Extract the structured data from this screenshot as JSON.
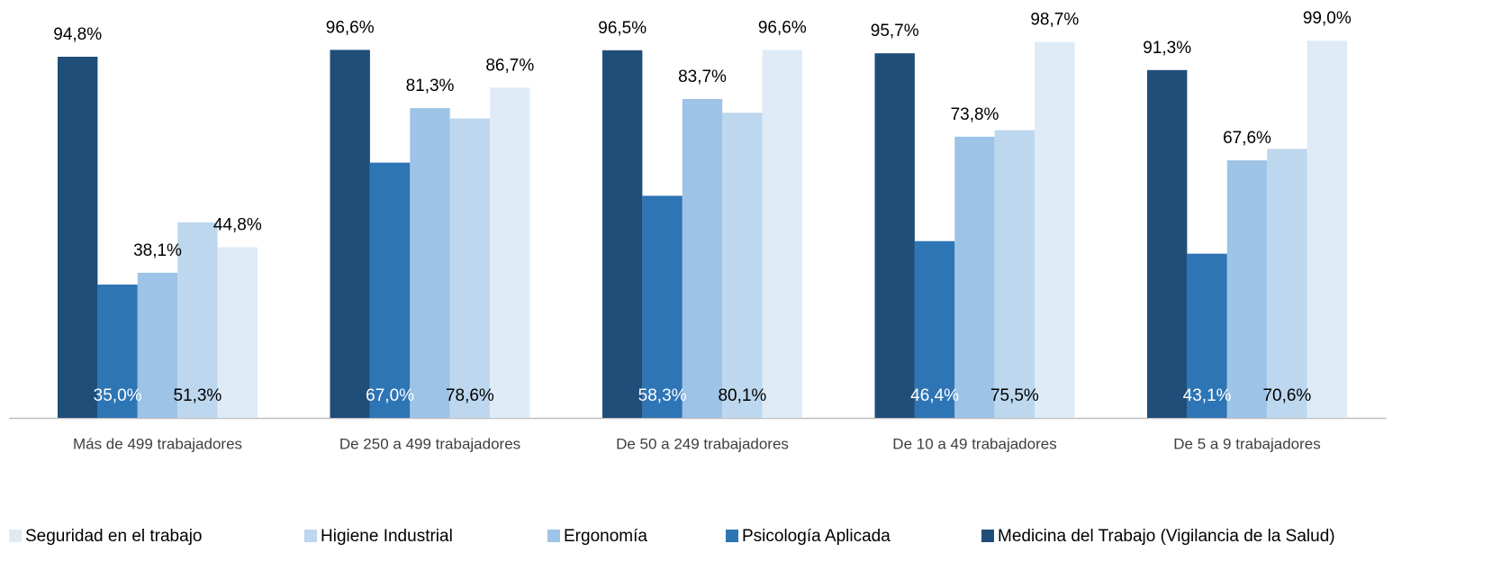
{
  "chart_data": {
    "type": "bar",
    "categories": [
      "Más de 499 trabajadores",
      "De 250 a 499 trabajadores",
      "De 50 a 249 trabajadores",
      "De 10 a 49 trabajadores",
      "De 5 a 9 trabajadores"
    ],
    "series": [
      {
        "name": "Medicina del Trabajo (Vigilancia de la Salud)",
        "color": "#1f4e79",
        "values": [
          94.8,
          96.6,
          96.5,
          95.7,
          91.3
        ],
        "value_labels": [
          "94,8%",
          "96,6%",
          "96,5%",
          "95,7%",
          "91,3%"
        ]
      },
      {
        "name": "Psicología Aplicada",
        "color": "#2e75b6",
        "values": [
          35.0,
          67.0,
          58.3,
          46.4,
          43.1
        ],
        "value_labels": [
          "35,0%",
          "67,0%",
          "58,3%",
          "46,4%",
          "43,1%"
        ]
      },
      {
        "name": "Ergonomía",
        "color": "#9dc3e6",
        "values": [
          38.1,
          81.3,
          83.7,
          73.8,
          67.6
        ],
        "value_labels": [
          "38,1%",
          "81,3%",
          "83,7%",
          "73,8%",
          "67,6%"
        ]
      },
      {
        "name": "Higiene Industrial",
        "color": "#bdd7ee",
        "values": [
          51.3,
          78.6,
          80.1,
          75.5,
          70.6
        ],
        "value_labels": [
          "51,3%",
          "78,6%",
          "80,1%",
          "75,5%",
          "70,6%"
        ]
      },
      {
        "name": "Seguridad en el trabajo",
        "color": "#deebf7",
        "values": [
          44.8,
          86.7,
          96.6,
          98.7,
          99.0
        ],
        "value_labels": [
          "44,8%",
          "86,7%",
          "96,6%",
          "98,7%",
          "99,0%"
        ]
      }
    ]
  }
}
